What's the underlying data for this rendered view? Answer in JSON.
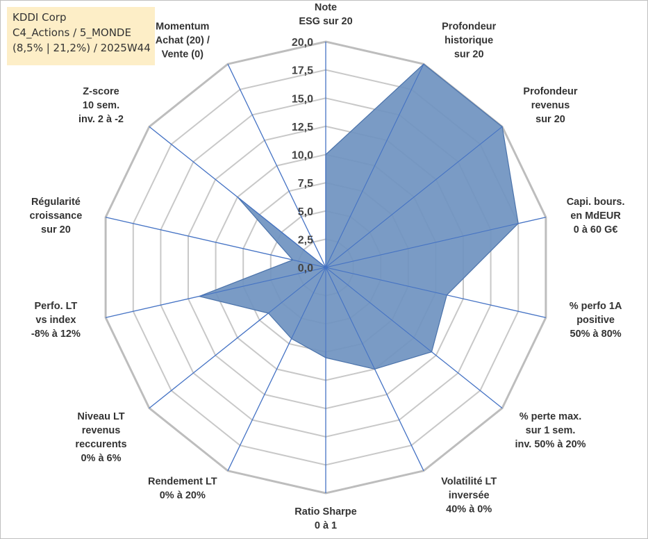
{
  "info": {
    "line1": "KDDI Corp",
    "line2": "C4_Actions / 5_MONDE",
    "line3": "(8,5% | 21,2%) / 2025W44"
  },
  "chart_data": {
    "type": "radar",
    "scale": {
      "min": 0,
      "max": 20,
      "step": 2.5
    },
    "tick_labels": [
      "0,0",
      "2,5",
      "5,0",
      "7,5",
      "10,0",
      "12,5",
      "15,0",
      "17,5",
      "20,0"
    ],
    "axes": [
      {
        "label": [
          "Note",
          "ESG sur 20"
        ],
        "value": 10.0
      },
      {
        "label": [
          "Profondeur",
          "historique",
          "sur 20"
        ],
        "value": 20.0
      },
      {
        "label": [
          "Profondeur",
          "revenus",
          "sur 20"
        ],
        "value": 20.0
      },
      {
        "label": [
          "Capi. bours.",
          "en MdEUR",
          "0 à 60 G€"
        ],
        "value": 17.5
      },
      {
        "label": [
          "% perfo 1A",
          "positive",
          "50% à 80%"
        ],
        "value": 11.0
      },
      {
        "label": [
          "% perte max.",
          "sur 1 sem.",
          "inv. 50% à 20%"
        ],
        "value": 12.0
      },
      {
        "label": [
          "Volatilité LT",
          "inversée",
          "40% à 0%"
        ],
        "value": 10.0
      },
      {
        "label": [
          "Ratio Sharpe",
          "0 à 1"
        ],
        "value": 8.0
      },
      {
        "label": [
          "Rendement LT",
          "0% à 20%"
        ],
        "value": 7.0
      },
      {
        "label": [
          "Niveau LT",
          "revenus",
          "reccurents",
          "0% à 6%"
        ],
        "value": 6.5
      },
      {
        "label": [
          "Perfo. LT",
          "vs index",
          "-8% à 12%"
        ],
        "value": 11.5
      },
      {
        "label": [
          "Régularité",
          "croissance",
          "sur 20"
        ],
        "value": 3.0
      },
      {
        "label": [
          "Z-score",
          "10 sem.",
          "inv. 2 à -2"
        ],
        "value": 10.0
      },
      {
        "label": [
          "Momentum",
          "Achat (20) /",
          "Vente (0)"
        ],
        "value": 0.0
      }
    ],
    "colors": {
      "fill": "#6f92c0",
      "stroke": "#4a72aa",
      "axis": "#4472c4",
      "grid": "#c8c8c8",
      "outer": "#bdbdbd"
    }
  }
}
